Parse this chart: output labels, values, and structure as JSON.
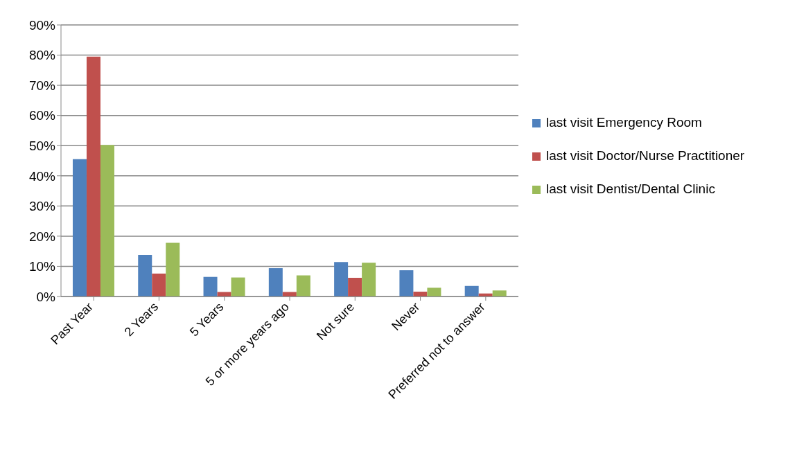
{
  "chart_data": {
    "type": "bar",
    "categories": [
      "Past Year",
      "2 Years",
      "5 Years",
      "5 or more years ago",
      "Not sure",
      "Never",
      "Preferred not to answer"
    ],
    "series": [
      {
        "name": "last visit Emergency Room",
        "color": "#4f81bd",
        "values": [
          45.5,
          13.8,
          6.5,
          9.4,
          11.4,
          8.7,
          3.5
        ]
      },
      {
        "name": "last visit Doctor/Nurse Practitioner",
        "color": "#c0504d",
        "values": [
          79.5,
          7.6,
          1.5,
          1.5,
          6.2,
          1.6,
          1.0
        ]
      },
      {
        "name": "last visit Dentist/Dental Clinic",
        "color": "#9bbb59",
        "values": [
          50.2,
          17.8,
          6.3,
          7.0,
          11.2,
          2.9,
          2.0
        ]
      }
    ],
    "ylim": [
      0,
      90
    ],
    "yticks": [
      {
        "value": 0,
        "label": "0%"
      },
      {
        "value": 10,
        "label": "10%"
      },
      {
        "value": 20,
        "label": "20%"
      },
      {
        "value": 30,
        "label": "30%"
      },
      {
        "value": 40,
        "label": "40%"
      },
      {
        "value": 50,
        "label": "50%"
      },
      {
        "value": 60,
        "label": "60%"
      },
      {
        "value": 70,
        "label": "70%"
      },
      {
        "value": 80,
        "label": "80%"
      },
      {
        "value": 90,
        "label": "90%"
      }
    ],
    "grid": "y",
    "legend": "right"
  }
}
